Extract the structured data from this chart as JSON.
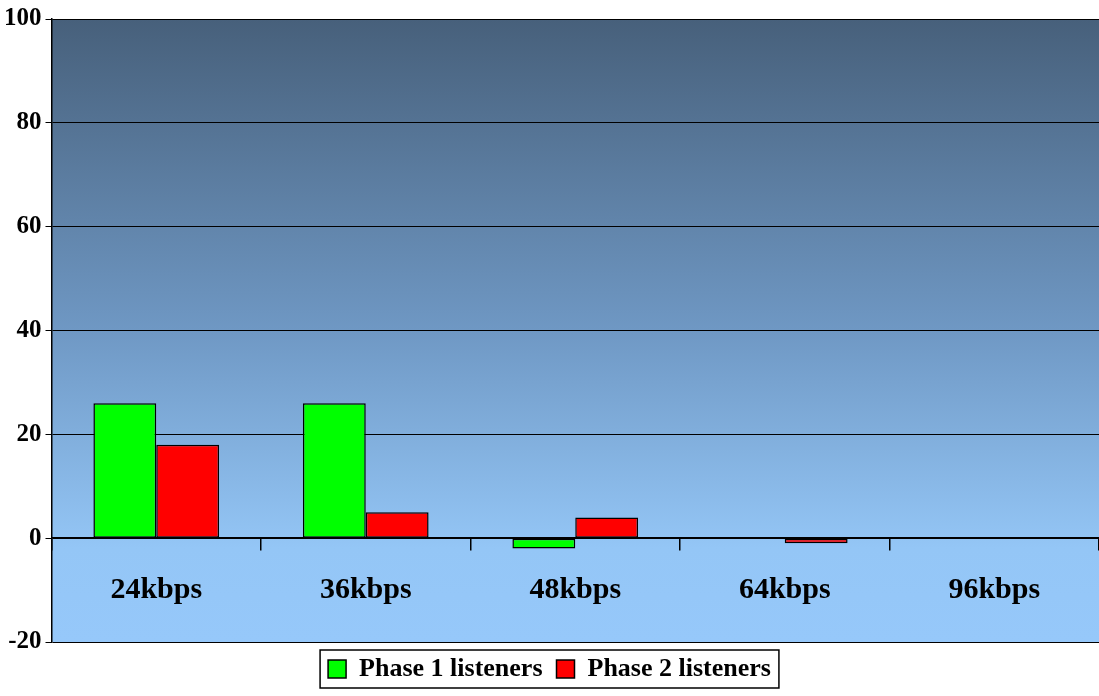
{
  "chart_data": {
    "type": "bar",
    "categories": [
      "24kbps",
      "36kbps",
      "48kbps",
      "64kbps",
      "96kbps"
    ],
    "series": [
      {
        "name": "Phase 1 listeners",
        "color": "#00ff00",
        "values": [
          26,
          26,
          -2,
          0,
          0
        ]
      },
      {
        "name": "Phase 2 listeners",
        "color": "#ff0000",
        "values": [
          18,
          5,
          4,
          -1,
          0
        ]
      }
    ],
    "ylim": [
      -20,
      100
    ],
    "yticks": [
      -20,
      0,
      20,
      40,
      60,
      80,
      100
    ],
    "grid": "y",
    "legend": "bottom"
  }
}
